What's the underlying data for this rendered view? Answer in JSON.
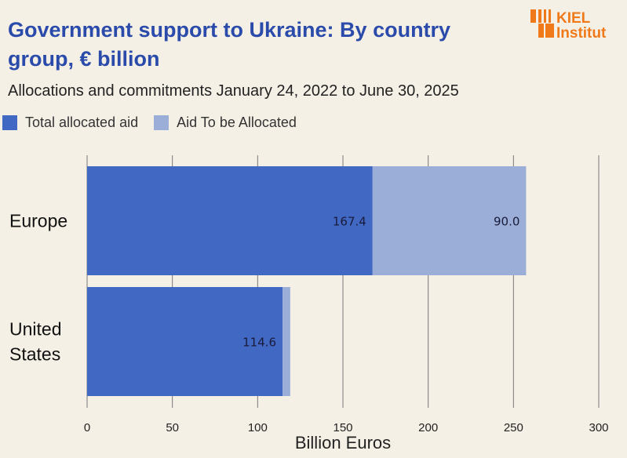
{
  "title": "Government support to Ukraine: By country group, € billion",
  "subtitle": "Allocations and commitments January 24, 2022 to June 30, 2025",
  "logo": {
    "line1": "KIEL",
    "line2": "Institut",
    "color": "#f07a1a"
  },
  "chart_data": {
    "type": "bar",
    "orientation": "horizontal",
    "stacked": true,
    "categories": [
      "Europe",
      "United States"
    ],
    "series": [
      {
        "name": "Total allocated aid",
        "values": [
          167.4,
          114.6
        ],
        "color": "#4169c4",
        "labels": [
          "167.4",
          "114.6"
        ]
      },
      {
        "name": "Aid To be Allocated",
        "values": [
          90.0,
          4.5
        ],
        "color": "#9aaed8",
        "labels": [
          "90.0",
          ""
        ]
      }
    ],
    "xlabel": "Billion Euros",
    "xlim": [
      0,
      300
    ],
    "xticks": [
      0,
      50,
      100,
      150,
      200,
      250,
      300
    ],
    "grid": "vertical",
    "legend": "top-left"
  }
}
